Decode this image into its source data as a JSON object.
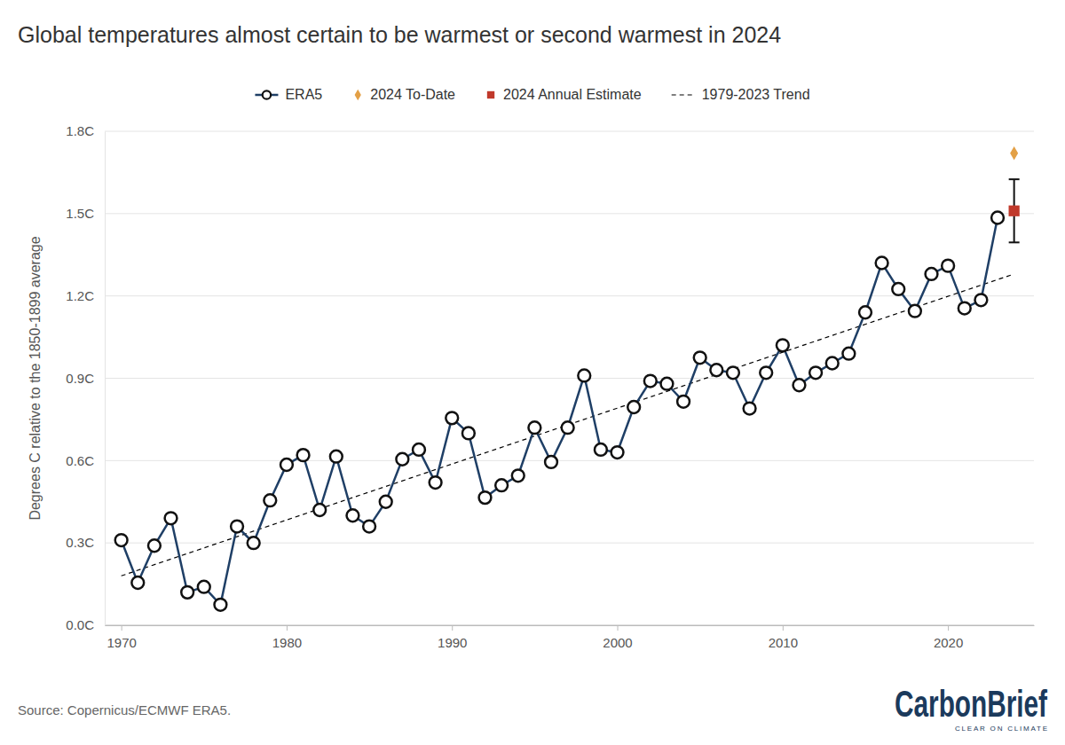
{
  "chart_data": {
    "type": "line",
    "title": "Global temperatures almost certain to be warmest or second warmest in 2024",
    "y_label": "Degrees C relative to the 1850-1899 average",
    "source": "Source: Copernicus/ECMWF ERA5.",
    "logo": {
      "name": "CarbonBrief",
      "tagline": "CLEAR ON CLIMATE"
    },
    "legend": "top",
    "grid": true,
    "xlim": [
      1969,
      2025.2
    ],
    "xticks": [
      1970,
      1980,
      1990,
      2000,
      2010,
      2020
    ],
    "ylim": [
      0,
      1.8
    ],
    "yticks": [
      {
        "value": 0,
        "label": "0.0C"
      },
      {
        "value": 0.3,
        "label": "0.3C"
      },
      {
        "value": 0.6,
        "label": "0.6C"
      },
      {
        "value": 0.9,
        "label": "0.9C"
      },
      {
        "value": 1.2,
        "label": "1.2C"
      },
      {
        "value": 1.5,
        "label": "1.5C"
      },
      {
        "value": 1.8,
        "label": "1.8C"
      }
    ],
    "series": [
      {
        "name": "ERA5",
        "type": "line",
        "color": "#1f3f66",
        "marker": "circle",
        "line_style": "solid",
        "x": [
          1970,
          1971,
          1972,
          1973,
          1974,
          1975,
          1976,
          1977,
          1978,
          1979,
          1980,
          1981,
          1982,
          1983,
          1984,
          1985,
          1986,
          1987,
          1988,
          1989,
          1990,
          1991,
          1992,
          1993,
          1994,
          1995,
          1996,
          1997,
          1998,
          1999,
          2000,
          2001,
          2002,
          2003,
          2004,
          2005,
          2006,
          2007,
          2008,
          2009,
          2010,
          2011,
          2012,
          2013,
          2014,
          2015,
          2016,
          2017,
          2018,
          2019,
          2020,
          2021,
          2022,
          2023
        ],
        "values": [
          0.31,
          0.155,
          0.29,
          0.39,
          0.12,
          0.14,
          0.075,
          0.36,
          0.3,
          0.455,
          0.585,
          0.62,
          0.42,
          0.615,
          0.4,
          0.36,
          0.45,
          0.605,
          0.64,
          0.52,
          0.755,
          0.7,
          0.465,
          0.51,
          0.545,
          0.72,
          0.595,
          0.72,
          0.91,
          0.64,
          0.63,
          0.795,
          0.89,
          0.88,
          0.815,
          0.975,
          0.93,
          0.92,
          0.79,
          0.92,
          1.02,
          0.875,
          0.92,
          0.955,
          0.99,
          1.14,
          1.32,
          1.225,
          1.145,
          1.28,
          1.31,
          1.155,
          1.185,
          1.485
        ]
      },
      {
        "name": "2024 To-Date",
        "type": "scatter",
        "color": "#e3a046",
        "marker": "diamond",
        "x": [
          2024
        ],
        "values": [
          1.72
        ]
      },
      {
        "name": "2024 Annual Estimate",
        "type": "scatter",
        "color": "#c0392b",
        "marker": "square",
        "x": [
          2024
        ],
        "values": [
          1.51
        ],
        "error": [
          0.115
        ]
      },
      {
        "name": "1979-2023 Trend",
        "type": "line",
        "color": "#000000",
        "line_style": "dashed",
        "x": [
          1970,
          2024
        ],
        "values": [
          0.18,
          1.28
        ]
      }
    ]
  }
}
